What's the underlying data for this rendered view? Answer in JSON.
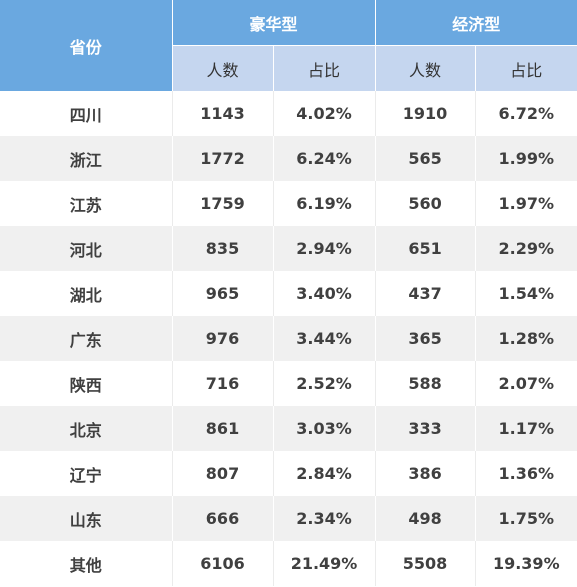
{
  "table": {
    "province_header": "省份",
    "group_headers": [
      "豪华型",
      "经济型"
    ],
    "sub_headers": [
      "人数",
      "占比",
      "人数",
      "占比"
    ],
    "rows": [
      {
        "province": "四川",
        "lux_count": "1143",
        "lux_pct": "4.02%",
        "eco_count": "1910",
        "eco_pct": "6.72%"
      },
      {
        "province": "浙江",
        "lux_count": "1772",
        "lux_pct": "6.24%",
        "eco_count": "565",
        "eco_pct": "1.99%"
      },
      {
        "province": "江苏",
        "lux_count": "1759",
        "lux_pct": "6.19%",
        "eco_count": "560",
        "eco_pct": "1.97%"
      },
      {
        "province": "河北",
        "lux_count": "835",
        "lux_pct": "2.94%",
        "eco_count": "651",
        "eco_pct": "2.29%"
      },
      {
        "province": "湖北",
        "lux_count": "965",
        "lux_pct": "3.40%",
        "eco_count": "437",
        "eco_pct": "1.54%"
      },
      {
        "province": "广东",
        "lux_count": "976",
        "lux_pct": "3.44%",
        "eco_count": "365",
        "eco_pct": "1.28%"
      },
      {
        "province": "陕西",
        "lux_count": "716",
        "lux_pct": "2.52%",
        "eco_count": "588",
        "eco_pct": "2.07%"
      },
      {
        "province": "北京",
        "lux_count": "861",
        "lux_pct": "3.03%",
        "eco_count": "333",
        "eco_pct": "1.17%"
      },
      {
        "province": "辽宁",
        "lux_count": "807",
        "lux_pct": "2.84%",
        "eco_count": "386",
        "eco_pct": "1.36%"
      },
      {
        "province": "山东",
        "lux_count": "666",
        "lux_pct": "2.34%",
        "eco_count": "498",
        "eco_pct": "1.75%"
      },
      {
        "province": "其他",
        "lux_count": "6106",
        "lux_pct": "21.49%",
        "eco_count": "5508",
        "eco_pct": "19.39%"
      }
    ]
  },
  "colors": {
    "header_primary": "#6aa8e0",
    "header_secondary": "#c5d6ef",
    "row_alt": "#f0f0f0",
    "text": "#404040"
  }
}
